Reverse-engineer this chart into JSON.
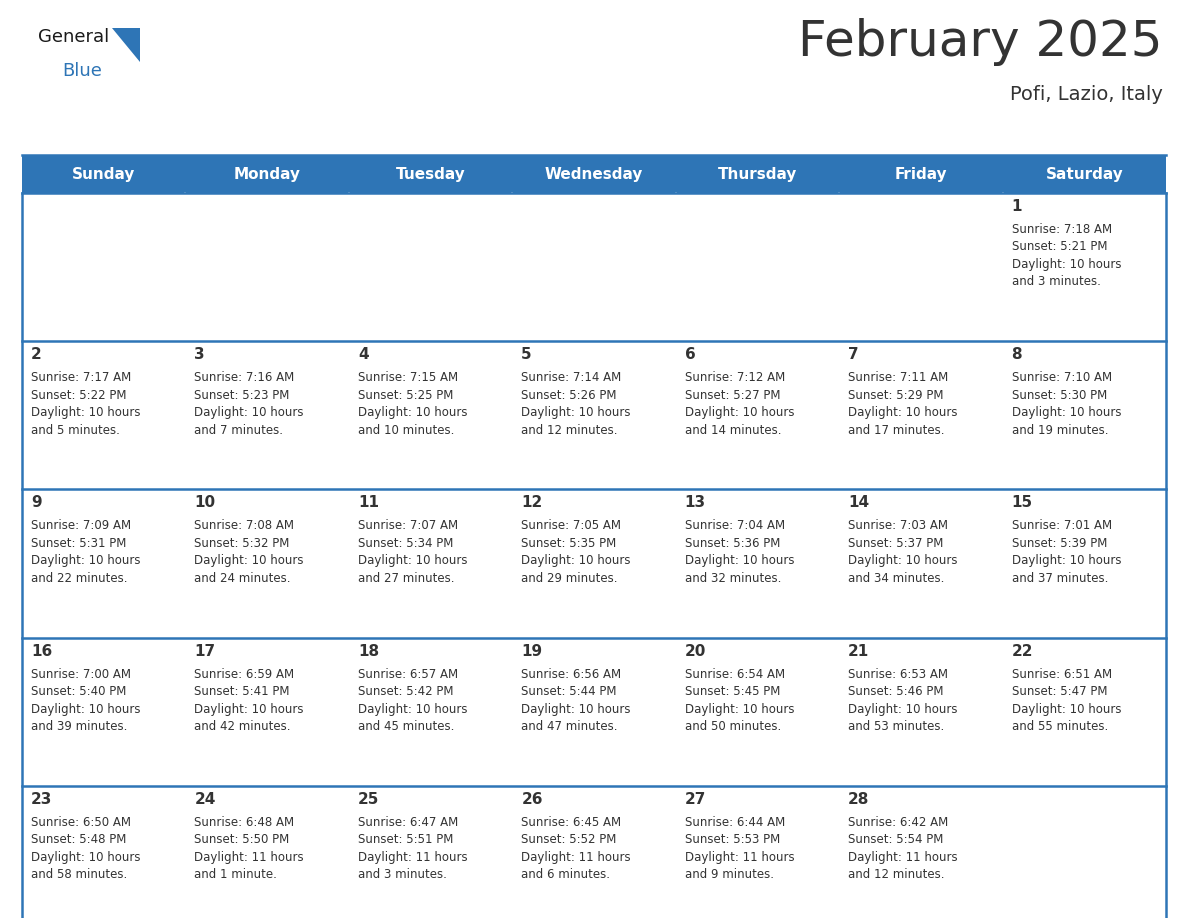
{
  "title": "February 2025",
  "subtitle": "Pofi, Lazio, Italy",
  "header_bg": "#2E75B6",
  "header_text": "#FFFFFF",
  "cell_bg": "#FFFFFF",
  "border_color": "#2E75B6",
  "separator_color": "#4A90C4",
  "days_of_week": [
    "Sunday",
    "Monday",
    "Tuesday",
    "Wednesday",
    "Thursday",
    "Friday",
    "Saturday"
  ],
  "calendar_data": [
    [
      null,
      null,
      null,
      null,
      null,
      null,
      {
        "day": "1",
        "sunrise": "7:18 AM",
        "sunset": "5:21 PM",
        "daylight1": "10 hours",
        "daylight2": "and 3 minutes."
      }
    ],
    [
      {
        "day": "2",
        "sunrise": "7:17 AM",
        "sunset": "5:22 PM",
        "daylight1": "10 hours",
        "daylight2": "and 5 minutes."
      },
      {
        "day": "3",
        "sunrise": "7:16 AM",
        "sunset": "5:23 PM",
        "daylight1": "10 hours",
        "daylight2": "and 7 minutes."
      },
      {
        "day": "4",
        "sunrise": "7:15 AM",
        "sunset": "5:25 PM",
        "daylight1": "10 hours",
        "daylight2": "and 10 minutes."
      },
      {
        "day": "5",
        "sunrise": "7:14 AM",
        "sunset": "5:26 PM",
        "daylight1": "10 hours",
        "daylight2": "and 12 minutes."
      },
      {
        "day": "6",
        "sunrise": "7:12 AM",
        "sunset": "5:27 PM",
        "daylight1": "10 hours",
        "daylight2": "and 14 minutes."
      },
      {
        "day": "7",
        "sunrise": "7:11 AM",
        "sunset": "5:29 PM",
        "daylight1": "10 hours",
        "daylight2": "and 17 minutes."
      },
      {
        "day": "8",
        "sunrise": "7:10 AM",
        "sunset": "5:30 PM",
        "daylight1": "10 hours",
        "daylight2": "and 19 minutes."
      }
    ],
    [
      {
        "day": "9",
        "sunrise": "7:09 AM",
        "sunset": "5:31 PM",
        "daylight1": "10 hours",
        "daylight2": "and 22 minutes."
      },
      {
        "day": "10",
        "sunrise": "7:08 AM",
        "sunset": "5:32 PM",
        "daylight1": "10 hours",
        "daylight2": "and 24 minutes."
      },
      {
        "day": "11",
        "sunrise": "7:07 AM",
        "sunset": "5:34 PM",
        "daylight1": "10 hours",
        "daylight2": "and 27 minutes."
      },
      {
        "day": "12",
        "sunrise": "7:05 AM",
        "sunset": "5:35 PM",
        "daylight1": "10 hours",
        "daylight2": "and 29 minutes."
      },
      {
        "day": "13",
        "sunrise": "7:04 AM",
        "sunset": "5:36 PM",
        "daylight1": "10 hours",
        "daylight2": "and 32 minutes."
      },
      {
        "day": "14",
        "sunrise": "7:03 AM",
        "sunset": "5:37 PM",
        "daylight1": "10 hours",
        "daylight2": "and 34 minutes."
      },
      {
        "day": "15",
        "sunrise": "7:01 AM",
        "sunset": "5:39 PM",
        "daylight1": "10 hours",
        "daylight2": "and 37 minutes."
      }
    ],
    [
      {
        "day": "16",
        "sunrise": "7:00 AM",
        "sunset": "5:40 PM",
        "daylight1": "10 hours",
        "daylight2": "and 39 minutes."
      },
      {
        "day": "17",
        "sunrise": "6:59 AM",
        "sunset": "5:41 PM",
        "daylight1": "10 hours",
        "daylight2": "and 42 minutes."
      },
      {
        "day": "18",
        "sunrise": "6:57 AM",
        "sunset": "5:42 PM",
        "daylight1": "10 hours",
        "daylight2": "and 45 minutes."
      },
      {
        "day": "19",
        "sunrise": "6:56 AM",
        "sunset": "5:44 PM",
        "daylight1": "10 hours",
        "daylight2": "and 47 minutes."
      },
      {
        "day": "20",
        "sunrise": "6:54 AM",
        "sunset": "5:45 PM",
        "daylight1": "10 hours",
        "daylight2": "and 50 minutes."
      },
      {
        "day": "21",
        "sunrise": "6:53 AM",
        "sunset": "5:46 PM",
        "daylight1": "10 hours",
        "daylight2": "and 53 minutes."
      },
      {
        "day": "22",
        "sunrise": "6:51 AM",
        "sunset": "5:47 PM",
        "daylight1": "10 hours",
        "daylight2": "and 55 minutes."
      }
    ],
    [
      {
        "day": "23",
        "sunrise": "6:50 AM",
        "sunset": "5:48 PM",
        "daylight1": "10 hours",
        "daylight2": "and 58 minutes."
      },
      {
        "day": "24",
        "sunrise": "6:48 AM",
        "sunset": "5:50 PM",
        "daylight1": "11 hours",
        "daylight2": "and 1 minute."
      },
      {
        "day": "25",
        "sunrise": "6:47 AM",
        "sunset": "5:51 PM",
        "daylight1": "11 hours",
        "daylight2": "and 3 minutes."
      },
      {
        "day": "26",
        "sunrise": "6:45 AM",
        "sunset": "5:52 PM",
        "daylight1": "11 hours",
        "daylight2": "and 6 minutes."
      },
      {
        "day": "27",
        "sunrise": "6:44 AM",
        "sunset": "5:53 PM",
        "daylight1": "11 hours",
        "daylight2": "and 9 minutes."
      },
      {
        "day": "28",
        "sunrise": "6:42 AM",
        "sunset": "5:54 PM",
        "daylight1": "11 hours",
        "daylight2": "and 12 minutes."
      },
      null
    ]
  ],
  "text_color": "#333333",
  "title_fontsize": 36,
  "subtitle_fontsize": 14,
  "header_fontsize": 11,
  "day_num_fontsize": 11,
  "cell_fontsize": 8.5
}
